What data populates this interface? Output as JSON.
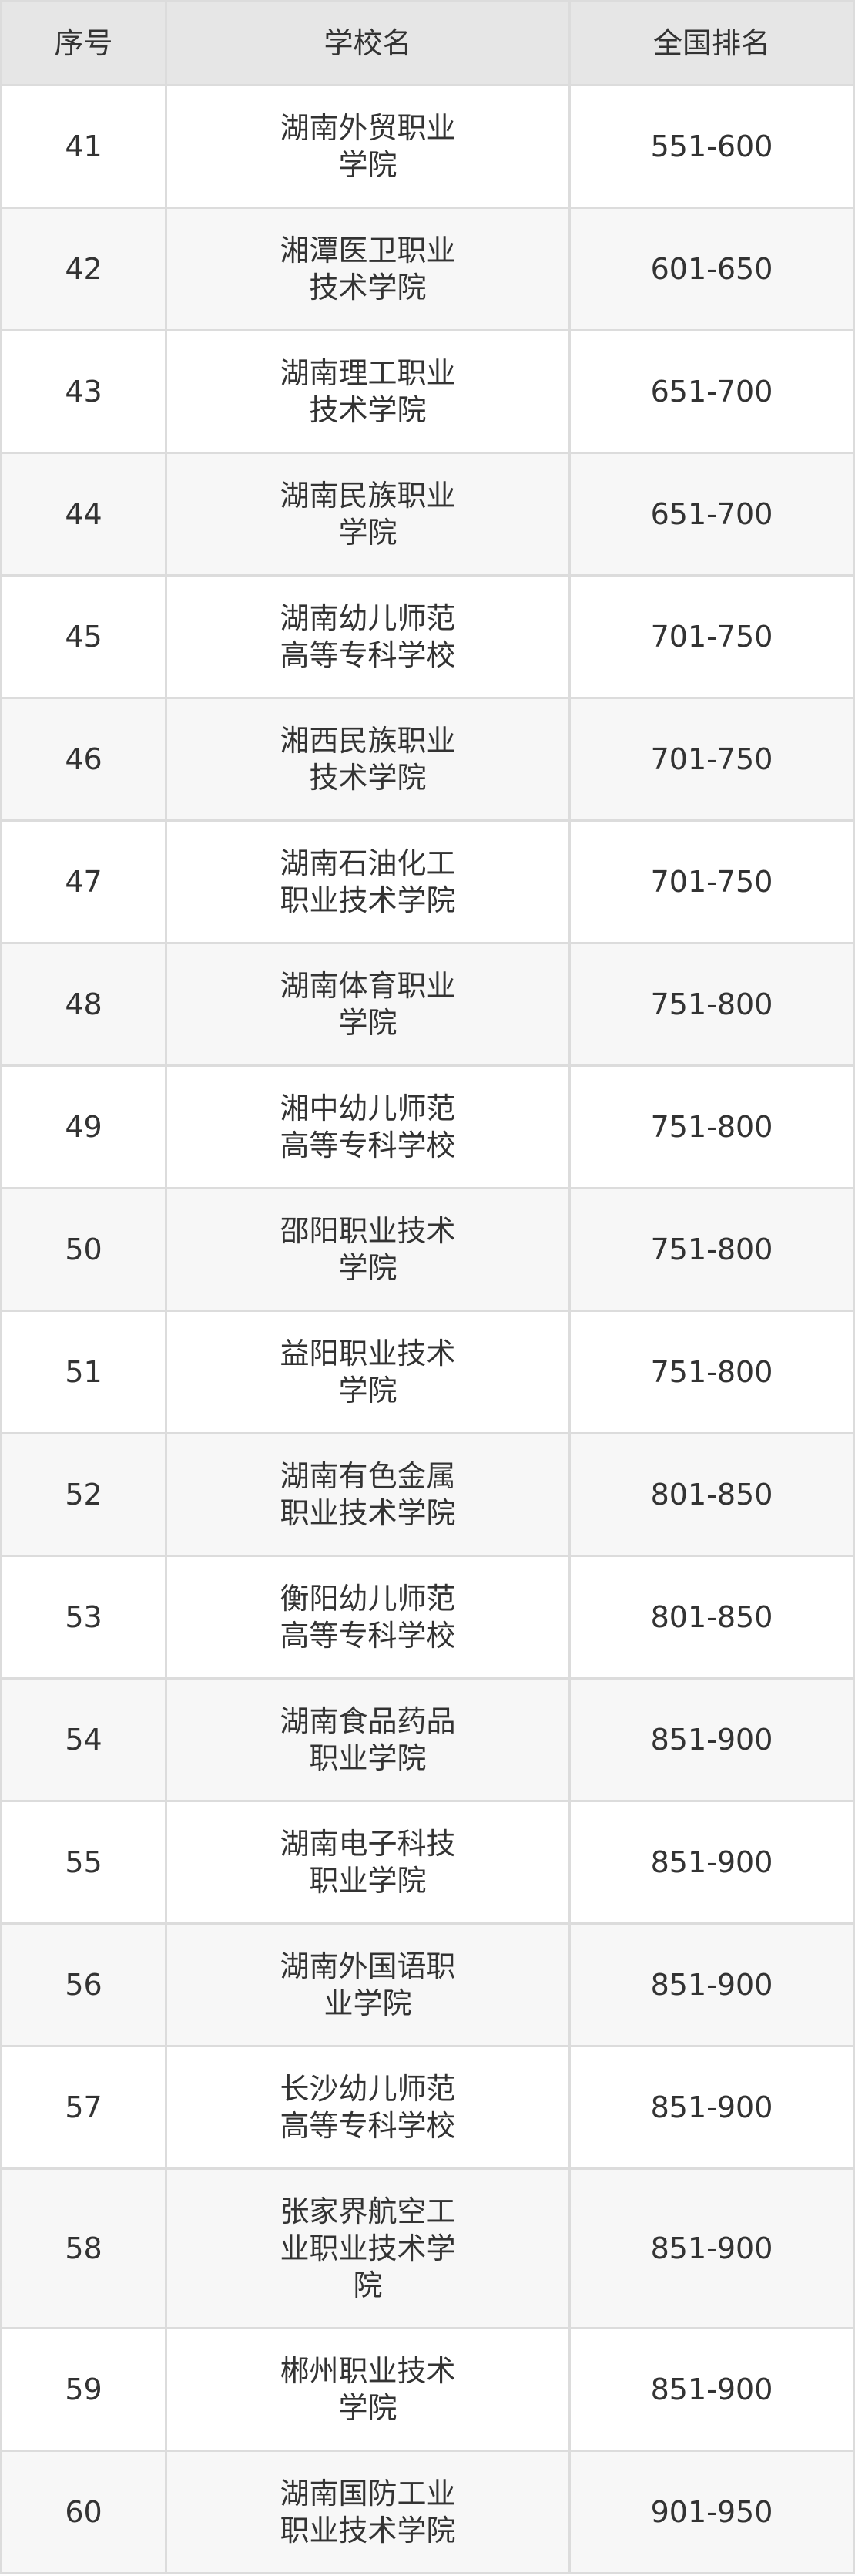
{
  "table": {
    "headers": [
      "序号",
      "学校名",
      "全国排名"
    ],
    "rows": [
      {
        "no": "41",
        "name": "湖南外贸职业学院",
        "rank": "551-600"
      },
      {
        "no": "42",
        "name": "湘潭医卫职业技术学院",
        "rank": "601-650"
      },
      {
        "no": "43",
        "name": "湖南理工职业技术学院",
        "rank": "651-700"
      },
      {
        "no": "44",
        "name": "湖南民族职业学院",
        "rank": "651-700"
      },
      {
        "no": "45",
        "name": "湖南幼儿师范高等专科学校",
        "rank": "701-750"
      },
      {
        "no": "46",
        "name": "湘西民族职业技术学院",
        "rank": "701-750"
      },
      {
        "no": "47",
        "name": "湖南石油化工职业技术学院",
        "rank": "701-750"
      },
      {
        "no": "48",
        "name": "湖南体育职业学院",
        "rank": "751-800"
      },
      {
        "no": "49",
        "name": "湘中幼儿师范高等专科学校",
        "rank": "751-800"
      },
      {
        "no": "50",
        "name": "邵阳职业技术学院",
        "rank": "751-800"
      },
      {
        "no": "51",
        "name": "益阳职业技术学院",
        "rank": "751-800"
      },
      {
        "no": "52",
        "name": "湖南有色金属职业技术学院",
        "rank": "801-850"
      },
      {
        "no": "53",
        "name": "衡阳幼儿师范高等专科学校",
        "rank": "801-850"
      },
      {
        "no": "54",
        "name": "湖南食品药品职业学院",
        "rank": "851-900"
      },
      {
        "no": "55",
        "name": "湖南电子科技职业学院",
        "rank": "851-900"
      },
      {
        "no": "56",
        "name": "湖南外国语职业学院",
        "rank": "851-900"
      },
      {
        "no": "57",
        "name": "长沙幼儿师范高等专科学校",
        "rank": "851-900"
      },
      {
        "no": "58",
        "name": "张家界航空工业职业技术学院",
        "rank": "851-900"
      },
      {
        "no": "59",
        "name": "郴州职业技术学院",
        "rank": "851-900"
      },
      {
        "no": "60",
        "name": "湖南国防工业职业技术学院",
        "rank": "901-950"
      }
    ]
  }
}
